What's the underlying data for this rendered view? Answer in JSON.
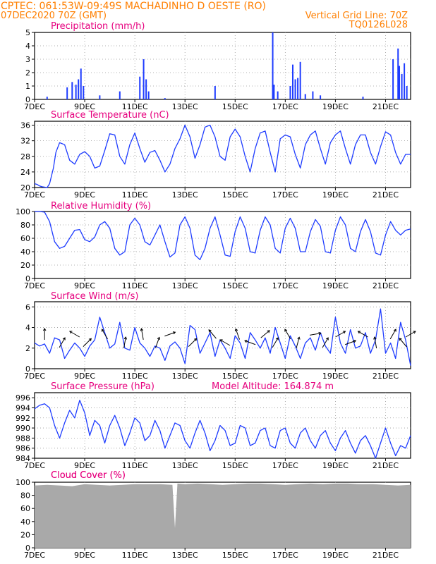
{
  "header": {
    "line1_left": "CPTEC:   061:53W-09:49S   MACHADINHO D OESTE (RO)",
    "line2_left": "07DEC2020 70Z (GMT)",
    "line2_right": "Vertical Grid Line: 70Z",
    "line3_right": "TQ0126L028"
  },
  "colors": {
    "header": "#ff7f00",
    "title": "#e6007e",
    "line": "#1e3cff",
    "bar": "#1e3cff",
    "cloud": "#a9a9a9",
    "grid": "#999999",
    "arrow": "#000000"
  },
  "x_axis": {
    "day_start": 7,
    "day_end": 22,
    "ticks": [
      7,
      9,
      11,
      13,
      15,
      17,
      19,
      21
    ],
    "tick_labels": [
      "7DEC",
      "9DEC",
      "11DEC",
      "13DEC",
      "15DEC",
      "17DEC",
      "19DEC",
      "21DEC"
    ]
  },
  "panels": {
    "precip": {
      "title": "Precipitation (mm/h)",
      "yticks": [
        "0",
        "1",
        "2",
        "3",
        "4",
        "5"
      ]
    },
    "temp": {
      "title": "Surface Temperature (nC)",
      "yticks": [
        "20",
        "24",
        "28",
        "32",
        "36"
      ]
    },
    "rh": {
      "title": "Relative Humidity (%)",
      "yticks": [
        "0",
        "20",
        "40",
        "60",
        "80",
        "100"
      ]
    },
    "wind": {
      "title": "Surface Wind (m/s)",
      "yticks": [
        "0",
        "2",
        "4",
        "6"
      ]
    },
    "pres": {
      "title": "Surface Pressure (hPa)",
      "extra": "Model Altitude: 164.874 m",
      "yticks": [
        "984",
        "986",
        "988",
        "990",
        "992",
        "994",
        "996"
      ]
    },
    "cloud": {
      "title": "Cloud Cover (%)",
      "yticks": [
        "0",
        "20",
        "40",
        "60",
        "80",
        "100"
      ]
    }
  },
  "chart_data": [
    {
      "type": "bar",
      "title": "Precipitation (mm/h)",
      "ylim": [
        0,
        5
      ],
      "x": [
        7.5,
        8.3,
        8.5,
        8.65,
        8.75,
        8.85,
        8.95,
        9.6,
        10.4,
        11.2,
        11.35,
        11.45,
        11.55,
        12.2,
        14.2,
        16.5,
        16.55,
        16.7,
        17.2,
        17.3,
        17.4,
        17.5,
        17.6,
        17.8,
        18.1,
        18.4,
        20.1,
        21.3,
        21.5,
        21.55,
        21.65,
        21.75,
        21.85
      ],
      "values": [
        0.2,
        0.9,
        1.3,
        1.1,
        1.5,
        2.3,
        1.0,
        0.3,
        0.6,
        1.7,
        3.0,
        1.5,
        0.6,
        0.1,
        1.0,
        5.0,
        1.1,
        0.6,
        1.0,
        2.6,
        1.5,
        1.6,
        2.8,
        0.4,
        0.6,
        0.3,
        0.2,
        3.0,
        3.8,
        2.5,
        1.9,
        2.7,
        1.0
      ]
    },
    {
      "type": "line",
      "title": "Surface Temperature (nC)",
      "ylim": [
        20,
        37
      ],
      "x": [
        7.0,
        7.1,
        7.2,
        7.3,
        7.5,
        7.6,
        7.75,
        7.85,
        8.0,
        8.2,
        8.4,
        8.6,
        8.8,
        9.0,
        9.2,
        9.4,
        9.6,
        9.8,
        10.0,
        10.2,
        10.4,
        10.6,
        10.8,
        11.0,
        11.2,
        11.4,
        11.6,
        11.8,
        12.0,
        12.2,
        12.4,
        12.6,
        12.8,
        13.0,
        13.2,
        13.4,
        13.6,
        13.8,
        14.0,
        14.2,
        14.4,
        14.6,
        14.8,
        15.0,
        15.2,
        15.4,
        15.6,
        15.8,
        16.0,
        16.2,
        16.4,
        16.6,
        16.8,
        17.0,
        17.2,
        17.4,
        17.6,
        17.8,
        18.0,
        18.2,
        18.4,
        18.6,
        18.8,
        19.0,
        19.2,
        19.4,
        19.6,
        19.8,
        20.0,
        20.2,
        20.4,
        20.6,
        20.8,
        21.0,
        21.2,
        21.4,
        21.6,
        21.8,
        22.0
      ],
      "values": [
        21.0,
        20.8,
        20.4,
        20.2,
        20.0,
        21.0,
        25.0,
        29.0,
        31.5,
        31.0,
        27.0,
        26.0,
        28.5,
        29.2,
        28.0,
        25.0,
        25.5,
        29.5,
        33.8,
        33.5,
        28.0,
        26.0,
        31.0,
        34.0,
        30.0,
        26.5,
        29.0,
        29.5,
        27.0,
        24.0,
        26.0,
        30.0,
        32.5,
        36.0,
        33.0,
        27.5,
        31.0,
        35.5,
        36.0,
        33.0,
        28.0,
        27.0,
        33.0,
        35.0,
        33.0,
        28.0,
        24.0,
        30.0,
        34.0,
        34.5,
        29.0,
        24.0,
        32.5,
        33.5,
        33.0,
        28.5,
        25.0,
        31.0,
        33.5,
        34.5,
        30.0,
        26.0,
        31.5,
        33.5,
        34.5,
        30.0,
        26.0,
        31.0,
        33.5,
        33.5,
        29.0,
        26.0,
        30.5,
        34.3,
        33.5,
        29.0,
        26.0,
        28.5,
        28.5
      ]
    },
    {
      "type": "line",
      "title": "Relative Humidity (%)",
      "ylim": [
        0,
        100
      ],
      "x": [
        7.0,
        7.2,
        7.4,
        7.6,
        7.8,
        8.0,
        8.2,
        8.4,
        8.6,
        8.8,
        9.0,
        9.2,
        9.4,
        9.6,
        9.8,
        10.0,
        10.2,
        10.4,
        10.6,
        10.8,
        11.0,
        11.2,
        11.4,
        11.6,
        11.8,
        12.0,
        12.2,
        12.4,
        12.6,
        12.8,
        13.0,
        13.2,
        13.4,
        13.6,
        13.8,
        14.0,
        14.2,
        14.4,
        14.6,
        14.8,
        15.0,
        15.2,
        15.4,
        15.6,
        15.8,
        16.0,
        16.2,
        16.4,
        16.6,
        16.8,
        17.0,
        17.2,
        17.4,
        17.6,
        17.8,
        18.0,
        18.2,
        18.4,
        18.6,
        18.8,
        19.0,
        19.2,
        19.4,
        19.6,
        19.8,
        20.0,
        20.2,
        20.4,
        20.6,
        20.8,
        21.0,
        21.2,
        21.4,
        21.6,
        21.8,
        22.0
      ],
      "values": [
        100,
        100,
        99,
        85,
        55,
        45,
        48,
        60,
        72,
        73,
        58,
        55,
        62,
        80,
        85,
        75,
        45,
        35,
        40,
        80,
        90,
        80,
        55,
        50,
        65,
        80,
        55,
        32,
        38,
        80,
        92,
        75,
        35,
        28,
        45,
        75,
        92,
        65,
        35,
        33,
        70,
        92,
        75,
        40,
        38,
        72,
        92,
        80,
        45,
        38,
        75,
        90,
        75,
        40,
        40,
        70,
        88,
        78,
        40,
        38,
        72,
        92,
        80,
        45,
        40,
        70,
        88,
        70,
        38,
        35,
        65,
        85,
        72,
        65,
        72,
        74
      ]
    },
    {
      "type": "line",
      "title": "Surface Wind (m/s)",
      "ylim": [
        0,
        6.5
      ],
      "x": [
        7.0,
        7.2,
        7.4,
        7.6,
        7.8,
        8.0,
        8.2,
        8.4,
        8.6,
        8.8,
        9.0,
        9.2,
        9.4,
        9.6,
        9.8,
        10.0,
        10.2,
        10.4,
        10.6,
        10.8,
        11.0,
        11.2,
        11.4,
        11.6,
        11.8,
        12.0,
        12.2,
        12.4,
        12.6,
        12.8,
        13.0,
        13.2,
        13.4,
        13.6,
        13.8,
        14.0,
        14.2,
        14.4,
        14.6,
        14.8,
        15.0,
        15.2,
        15.4,
        15.6,
        15.8,
        16.0,
        16.2,
        16.4,
        16.6,
        16.8,
        17.0,
        17.2,
        17.4,
        17.6,
        17.8,
        18.0,
        18.2,
        18.4,
        18.6,
        18.8,
        19.0,
        19.2,
        19.4,
        19.6,
        19.8,
        20.0,
        20.2,
        20.4,
        20.6,
        20.8,
        21.0,
        21.2,
        21.4,
        21.6,
        21.8,
        22.0
      ],
      "values": [
        2.5,
        2.2,
        2.4,
        1.5,
        3.0,
        2.8,
        1.0,
        1.8,
        2.5,
        2.0,
        1.2,
        2.2,
        2.8,
        5.0,
        3.5,
        2.0,
        2.4,
        4.5,
        2.0,
        1.8,
        4.0,
        2.5,
        2.0,
        1.2,
        2.2,
        2.0,
        0.8,
        2.2,
        2.6,
        2.0,
        0.5,
        4.2,
        3.8,
        1.5,
        2.5,
        3.5,
        1.2,
        2.8,
        2.0,
        1.0,
        3.2,
        2.5,
        1.0,
        3.5,
        2.8,
        2.0,
        3.0,
        1.5,
        4.0,
        2.5,
        1.0,
        3.2,
        2.2,
        1.0,
        2.5,
        3.0,
        1.8,
        3.5,
        2.2,
        1.5,
        5.0,
        2.5,
        1.5,
        3.8,
        2.0,
        2.2,
        3.5,
        1.5,
        2.8,
        5.8,
        1.5,
        2.5,
        1.0,
        4.5,
        2.8,
        0.3
      ]
    },
    {
      "type": "line",
      "title": "Surface Pressure (hPa)",
      "ylim": [
        984,
        997
      ],
      "x": [
        7.0,
        7.2,
        7.4,
        7.6,
        7.8,
        8.0,
        8.2,
        8.4,
        8.6,
        8.8,
        9.0,
        9.2,
        9.4,
        9.6,
        9.8,
        10.0,
        10.2,
        10.4,
        10.6,
        10.8,
        11.0,
        11.2,
        11.4,
        11.6,
        11.8,
        12.0,
        12.2,
        12.4,
        12.6,
        12.8,
        13.0,
        13.2,
        13.4,
        13.6,
        13.8,
        14.0,
        14.2,
        14.4,
        14.6,
        14.8,
        15.0,
        15.2,
        15.4,
        15.6,
        15.8,
        16.0,
        16.2,
        16.4,
        16.6,
        16.8,
        17.0,
        17.2,
        17.4,
        17.6,
        17.8,
        18.0,
        18.2,
        18.4,
        18.6,
        18.8,
        19.0,
        19.2,
        19.4,
        19.6,
        19.8,
        20.0,
        20.2,
        20.4,
        20.6,
        20.8,
        21.0,
        21.2,
        21.4,
        21.6,
        21.8,
        22.0
      ],
      "values": [
        993.8,
        994.5,
        994.8,
        994.0,
        990.5,
        988.0,
        991.0,
        993.5,
        992.0,
        995.5,
        993.0,
        988.5,
        991.5,
        990.5,
        987.0,
        990.5,
        992.5,
        990.0,
        986.5,
        989.0,
        992.0,
        991.0,
        987.5,
        988.5,
        991.5,
        989.5,
        986.0,
        988.5,
        991.0,
        990.5,
        987.5,
        986.0,
        989.0,
        991.5,
        989.0,
        985.5,
        987.5,
        990.5,
        989.5,
        986.5,
        987.0,
        990.5,
        990.0,
        986.5,
        987.0,
        989.5,
        990.0,
        986.5,
        986.0,
        989.5,
        990.0,
        987.0,
        986.0,
        989.0,
        990.0,
        987.5,
        986.0,
        988.5,
        989.5,
        987.0,
        985.5,
        988.0,
        989.5,
        987.0,
        985.0,
        987.5,
        988.5,
        986.5,
        984.0,
        987.0,
        990.0,
        987.0,
        984.5,
        986.5,
        986.0,
        988.5
      ]
    },
    {
      "type": "area",
      "title": "Cloud Cover (%)",
      "ylim": [
        0,
        100
      ],
      "x": [
        7.0,
        7.5,
        8.0,
        8.5,
        9.0,
        9.5,
        10.0,
        10.5,
        11.0,
        11.5,
        12.0,
        12.5,
        12.6,
        12.7,
        13.0,
        13.5,
        14.0,
        14.5,
        15.0,
        15.5,
        16.0,
        16.5,
        17.0,
        17.5,
        18.0,
        18.5,
        19.0,
        19.5,
        20.0,
        20.5,
        21.0,
        21.5,
        22.0
      ],
      "values": [
        95,
        96,
        95,
        94,
        97,
        96,
        95,
        96,
        97,
        97,
        97,
        96,
        30,
        98,
        97,
        98,
        97,
        96,
        97,
        98,
        98,
        97,
        96,
        97,
        98,
        97,
        98,
        98,
        97,
        97,
        96,
        95,
        96
      ]
    },
    {
      "type": "line",
      "title": "Surface Wind direction",
      "note": "arrows",
      "x": [
        7.4,
        8.1,
        8.6,
        9.1,
        9.8,
        10.6,
        11.3,
        11.9,
        12.4,
        13.3,
        14.1,
        14.6,
        15.1,
        15.6,
        16.2,
        16.6,
        17.1,
        17.5,
        18.2,
        18.6,
        19.2,
        19.6,
        20.1,
        20.6,
        21.3,
        21.7,
        22.0
      ],
      "values": [
        90,
        60,
        150,
        45,
        120,
        80,
        100,
        70,
        20,
        45,
        130,
        150,
        110,
        160,
        40,
        60,
        120,
        75,
        10,
        60,
        30,
        20,
        150,
        100,
        60,
        130,
        30
      ]
    }
  ]
}
